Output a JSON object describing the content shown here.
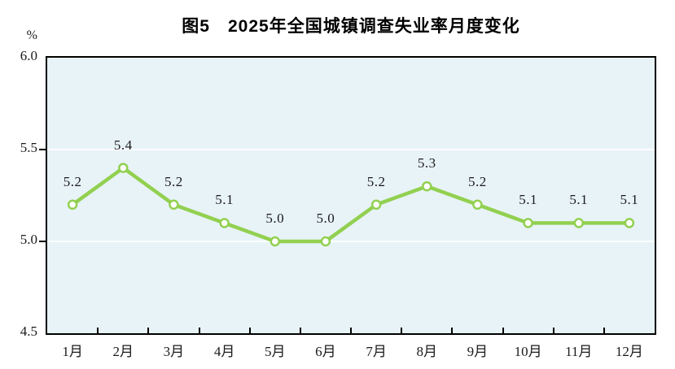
{
  "title": "图5　2025年全国城镇调查失业率月度变化",
  "colors": {
    "line": "#92d050",
    "marker_fill": "#ffffff",
    "plot_background": "#e8f3f8",
    "gridline": "#ffffff",
    "axis": "#000000",
    "text": "#1a1a1a"
  },
  "chart_data": {
    "type": "line",
    "title": "图5　2025年全国城镇调查失业率月度变化",
    "categories": [
      "1月",
      "2月",
      "3月",
      "4月",
      "5月",
      "6月",
      "7月",
      "8月",
      "9月",
      "10月",
      "11月",
      "12月"
    ],
    "values": [
      5.2,
      5.4,
      5.2,
      5.1,
      5.0,
      5.0,
      5.2,
      5.3,
      5.2,
      5.1,
      5.1,
      5.1
    ],
    "data_labels": [
      "5.2",
      "5.4",
      "5.2",
      "5.1",
      "5.0",
      "5.0",
      "5.2",
      "5.3",
      "5.2",
      "5.1",
      "5.1",
      "5.1"
    ],
    "xlabel": "",
    "ylabel": "%",
    "ylim": [
      4.5,
      6.0
    ],
    "yticks": [
      6.0,
      5.5,
      5.0,
      4.5
    ],
    "ytick_labels": [
      "6.0",
      "5.5",
      "5.0",
      "4.5"
    ],
    "gridline_values": [
      5.5,
      5.0
    ],
    "grid": "on",
    "legend": "none",
    "data_labels_shown": true
  }
}
